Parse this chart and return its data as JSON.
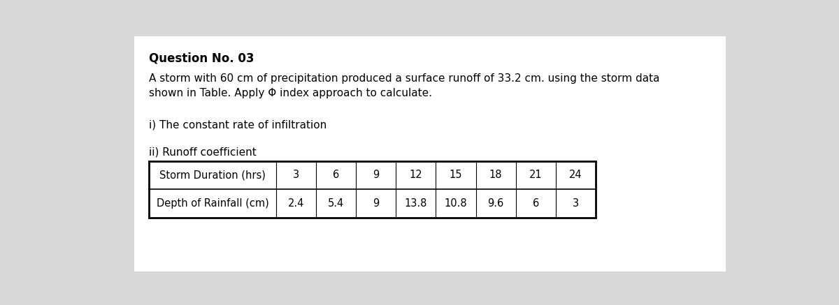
{
  "title": "Question No. 03",
  "paragraph": "A storm with 60 cm of precipitation produced a surface runoff of 33.2 cm. using the storm data\nshown in Table. Apply Φ index approach to calculate.",
  "item_i": "i) The constant rate of infiltration",
  "item_ii": "ii) Runoff coefficient",
  "table_headers": [
    "Storm Duration (hrs)",
    "3",
    "6",
    "9",
    "12",
    "15",
    "18",
    "21",
    "24"
  ],
  "table_row2_label": "Depth of Rainfall (cm)",
  "table_row2_values": [
    "2.4",
    "5.4",
    "9",
    "13.8",
    "10.8",
    "9.6",
    "6",
    "3"
  ],
  "background_color": "#d8d8d8",
  "content_bg": "#ffffff",
  "title_fontsize": 12,
  "body_fontsize": 11,
  "table_fontsize": 10.5
}
